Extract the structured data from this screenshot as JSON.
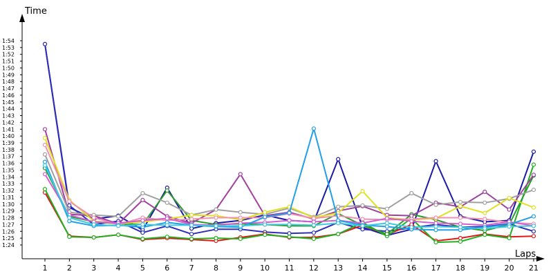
{
  "chart_data": {
    "type": "line",
    "ylabel": "Time",
    "xlabel": "Laps",
    "x": [
      1,
      2,
      3,
      4,
      5,
      6,
      7,
      8,
      9,
      10,
      11,
      12,
      13,
      14,
      15,
      16,
      17,
      18,
      19,
      20,
      21
    ],
    "y_ticks": [
      "1:24",
      "1:25",
      "1:26",
      "1:27",
      "1:28",
      "1:29",
      "1:30",
      "1:31",
      "1:32",
      "1:33",
      "1:34",
      "1:35",
      "1:36",
      "1:37",
      "1:38",
      "1:39",
      "1:40",
      "1:41",
      "1:42",
      "1:43",
      "1:44",
      "1:45",
      "1:46",
      "1:47",
      "1:48",
      "1:49",
      "1:50",
      "1:51",
      "1:52",
      "1:53",
      "1:54"
    ],
    "y_unit_note": "seconds",
    "ylim": [
      83.4,
      114.6
    ],
    "series": [
      {
        "color": "#1a1aa6",
        "values": [
          113.5,
          89.5,
          87.8,
          88.3,
          86.2,
          92.4,
          86.4,
          87.2,
          87.6,
          88.4,
          87.6,
          87.4,
          96.6,
          86.6,
          85.4,
          86.3,
          96.3,
          88.2,
          87.4,
          87.6,
          97.7
        ]
      },
      {
        "color": "#2e2eb8",
        "values": [
          113.5,
          89.8,
          87.0,
          87.5,
          85.8,
          86.8,
          85.6,
          86.3,
          86.3,
          85.9,
          85.7,
          85.8,
          87.3,
          86.3,
          86.0,
          86.5,
          87.0,
          86.6,
          86.7,
          87.1,
          86.0
        ]
      },
      {
        "color": "#e01818",
        "values": [
          91.7,
          85.3,
          85.1,
          85.5,
          84.8,
          85.0,
          84.8,
          84.6,
          85.1,
          85.6,
          85.1,
          85.1,
          85.6,
          86.9,
          85.5,
          87.0,
          84.6,
          85.0,
          85.6,
          85.2,
          85.3
        ]
      },
      {
        "color": "#22b022",
        "values": [
          92.2,
          85.2,
          85.1,
          85.5,
          84.9,
          85.2,
          84.9,
          85.0,
          84.9,
          85.5,
          85.2,
          84.9,
          85.6,
          87.3,
          85.3,
          87.9,
          84.4,
          84.5,
          85.5,
          85.0,
          95.8
        ]
      },
      {
        "color": "#2a9c2a",
        "values": [
          95.3,
          88.2,
          87.4,
          87.1,
          87.0,
          92.0,
          87.6,
          87.0,
          87.1,
          87.0,
          86.8,
          86.8,
          88.6,
          86.9,
          85.6,
          88.5,
          87.7,
          86.6,
          86.1,
          87.0,
          94.2
        ]
      },
      {
        "color": "#a040a0",
        "values": [
          101.0,
          88.5,
          88.3,
          87.1,
          90.6,
          88.2,
          87.2,
          89.2,
          94.4,
          88.3,
          88.8,
          87.8,
          89.0,
          89.7,
          88.4,
          88.3,
          90.2,
          89.6,
          91.8,
          89.2,
          94.3
        ]
      },
      {
        "color": "#a0a0a0",
        "values": [
          97.3,
          88.8,
          88.4,
          88.2,
          91.6,
          90.2,
          88.4,
          89.2,
          88.8,
          88.5,
          89.4,
          88.1,
          89.6,
          89.8,
          89.3,
          91.6,
          89.9,
          90.3,
          90.2,
          90.8,
          92.1
        ]
      },
      {
        "color": "#e0e020",
        "values": [
          99.7,
          90.6,
          87.5,
          87.1,
          87.4,
          87.8,
          88.4,
          88.3,
          87.7,
          88.8,
          89.6,
          88.0,
          88.7,
          91.9,
          88.0,
          87.7,
          87.9,
          89.7,
          88.7,
          90.9,
          89.5
        ]
      },
      {
        "color": "#f090b0",
        "values": [
          98.7,
          90.4,
          88.0,
          87.0,
          88.0,
          87.6,
          87.8,
          88.0,
          88.0,
          88.0,
          88.6,
          87.9,
          88.3,
          87.8,
          87.7,
          87.8,
          88.0,
          88.0,
          87.8,
          87.3,
          87.1
        ]
      },
      {
        "color": "#d060d0",
        "values": [
          94.4,
          88.4,
          87.4,
          87.2,
          87.6,
          87.9,
          87.0,
          86.9,
          87.2,
          87.3,
          87.6,
          87.4,
          87.6,
          87.2,
          87.9,
          87.5,
          87.2,
          87.1,
          86.9,
          87.4,
          86.8
        ]
      },
      {
        "color": "#20a0e8",
        "values": [
          96.2,
          87.5,
          86.8,
          86.9,
          86.6,
          87.3,
          86.9,
          86.7,
          86.6,
          88.1,
          88.7,
          101.1,
          87.6,
          86.9,
          86.7,
          86.3,
          86.2,
          86.2,
          86.6,
          87.0,
          88.2
        ]
      },
      {
        "color": "#40c8e0",
        "values": [
          95.7,
          88.0,
          87.0,
          86.8,
          87.0,
          86.9,
          86.9,
          86.8,
          86.8,
          87.0,
          87.0,
          86.9,
          87.2,
          86.8,
          87.2,
          86.6,
          86.7,
          86.6,
          86.4,
          86.7,
          86.8
        ]
      }
    ]
  }
}
